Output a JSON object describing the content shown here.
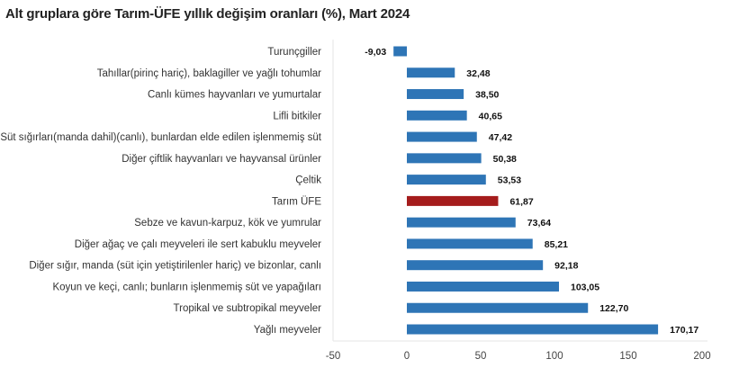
{
  "chart_data": {
    "type": "bar",
    "orientation": "horizontal",
    "title": "Alt gruplara göre Tarım-ÜFE yıllık değişim oranları (%), Mart 2024",
    "categories": [
      "Turunçgiller",
      "Tahıllar(pirinç hariç), baklagiller ve yağlı tohumlar",
      "Canlı kümes hayvanları ve yumurtalar",
      "Lifli bitkiler",
      "Süt sığırları(manda dahil)(canlı), bunlardan elde edilen işlenmemiş süt",
      "Diğer çiftlik hayvanları ve hayvansal ürünler",
      "Çeltik",
      "Tarım ÜFE",
      "Sebze ve kavun-karpuz, kök ve yumrular",
      "Diğer ağaç ve çalı meyveleri ile sert kabuklu meyveler",
      "Diğer sığır, manda (süt için yetiştirilenler hariç) ve bizonlar, canlı",
      "Koyun ve keçi, canlı; bunların işlenmemiş süt ve yapağıları",
      "Tropikal ve subtropikal meyveler",
      "Yağlı meyveler"
    ],
    "values": [
      -9.03,
      32.48,
      38.5,
      40.65,
      47.42,
      50.38,
      53.53,
      61.87,
      73.64,
      85.21,
      92.18,
      103.05,
      122.7,
      170.17
    ],
    "data_labels": [
      "-9,03",
      "32,48",
      "38,50",
      "40,65",
      "47,42",
      "50,38",
      "53,53",
      "61,87",
      "73,64",
      "85,21",
      "92,18",
      "103,05",
      "122,70",
      "170,17"
    ],
    "xlim": [
      -50,
      200
    ],
    "xticks": [
      "-50",
      "0",
      "50",
      "100",
      "150",
      "200"
    ],
    "xtick_values": [
      -50,
      0,
      50,
      100,
      150,
      200
    ],
    "grid": false,
    "colors": {
      "default": "#2e75b6",
      "highlight": "#a51c1c"
    },
    "highlight_category": "Tarım ÜFE"
  }
}
